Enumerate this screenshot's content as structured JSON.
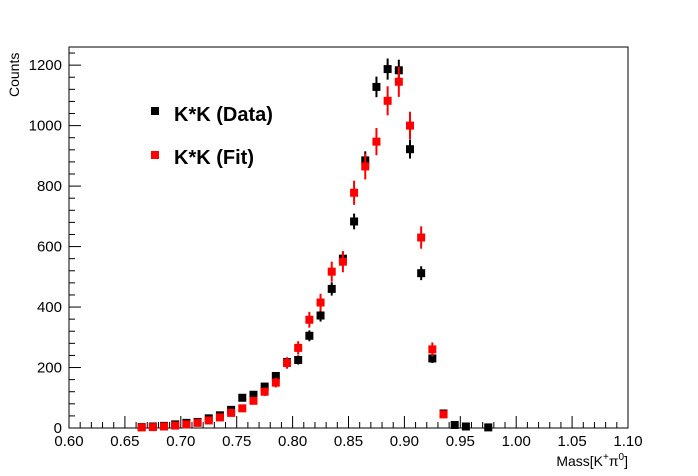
{
  "chart_data": {
    "type": "scatter",
    "xlabel_main": "Mass[K",
    "xlabel_sup1": "+",
    "xlabel_mid": "π",
    "xlabel_sup2": "0",
    "xlabel_end": "]",
    "ylabel": "Counts",
    "xlim": [
      0.6,
      1.1
    ],
    "ylim": [
      0,
      1260
    ],
    "xticks": [
      0.6,
      0.65,
      0.7,
      0.75,
      0.8,
      0.85,
      0.9,
      0.95,
      1.0,
      1.05,
      1.1
    ],
    "xtick_labels": [
      "0.60",
      "0.65",
      "0.70",
      "0.75",
      "0.80",
      "0.85",
      "0.90",
      "0.95",
      "1.00",
      "1.05",
      "1.10"
    ],
    "yticks": [
      0,
      200,
      400,
      600,
      800,
      1000,
      1200
    ],
    "ytick_labels": [
      "0",
      "200",
      "400",
      "600",
      "800",
      "1000",
      "1200"
    ],
    "bin_half_width": 0.0025,
    "series": [
      {
        "name": "K*K (Data)",
        "color": "#000000",
        "x": [
          0.665,
          0.675,
          0.685,
          0.695,
          0.705,
          0.715,
          0.725,
          0.735,
          0.745,
          0.755,
          0.765,
          0.775,
          0.785,
          0.795,
          0.805,
          0.815,
          0.825,
          0.835,
          0.845,
          0.855,
          0.865,
          0.875,
          0.885,
          0.895,
          0.905,
          0.915,
          0.925,
          0.935,
          0.945,
          0.955,
          0.975
        ],
        "y": [
          3,
          5,
          7,
          12,
          17,
          20,
          32,
          42,
          60,
          100,
          110,
          137,
          172,
          218,
          225,
          305,
          372,
          460,
          560,
          683,
          885,
          1128,
          1187,
          1183,
          922,
          512,
          230,
          48,
          10,
          5,
          2
        ],
        "yerr": [
          2,
          2,
          3,
          4,
          4,
          5,
          6,
          7,
          8,
          10,
          11,
          12,
          13,
          15,
          15,
          18,
          20,
          22,
          24,
          26,
          30,
          34,
          35,
          35,
          31,
          23,
          15,
          7,
          3,
          2,
          1
        ]
      },
      {
        "name": "K*K (Fit)",
        "color": "#ff0000",
        "x": [
          0.665,
          0.675,
          0.685,
          0.695,
          0.705,
          0.715,
          0.725,
          0.735,
          0.745,
          0.755,
          0.765,
          0.775,
          0.785,
          0.795,
          0.805,
          0.815,
          0.825,
          0.835,
          0.845,
          0.855,
          0.865,
          0.875,
          0.885,
          0.895,
          0.905,
          0.915,
          0.925,
          0.935
        ],
        "y": [
          2,
          3,
          5,
          8,
          12,
          17,
          25,
          35,
          50,
          65,
          90,
          120,
          150,
          215,
          265,
          358,
          415,
          517,
          550,
          778,
          865,
          947,
          1082,
          1145,
          1000,
          630,
          260,
          45
        ],
        "yerr": [
          1,
          2,
          2,
          3,
          4,
          5,
          6,
          7,
          8,
          10,
          12,
          14,
          16,
          19,
          22,
          26,
          29,
          33,
          35,
          40,
          43,
          45,
          48,
          50,
          46,
          37,
          23,
          9
        ]
      }
    ],
    "legend_placement": "top-left",
    "grid": false
  }
}
